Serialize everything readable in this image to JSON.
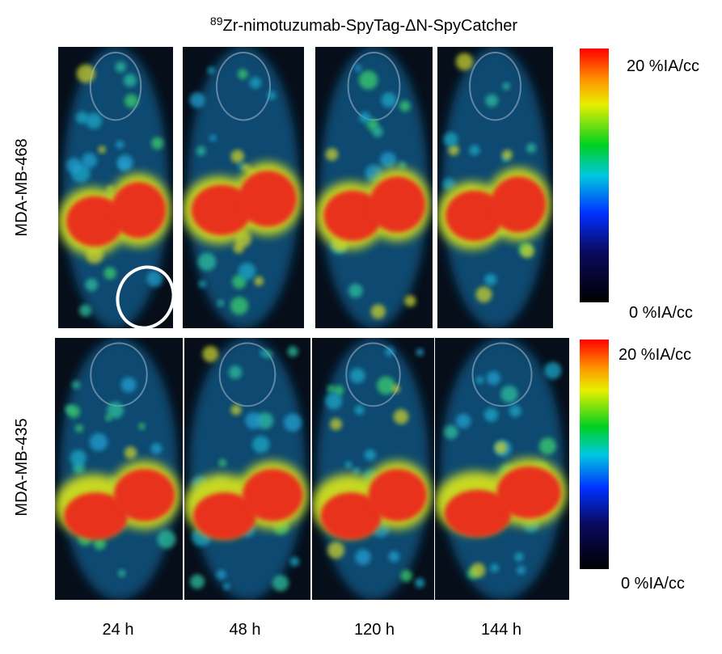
{
  "figure": {
    "title": {
      "superscript": "89",
      "text": "Zr-nimotuzumab-SpyTag-ΔN-SpyCatcher"
    },
    "rows": [
      {
        "label": "MDA-MB-468",
        "scale_max": "20 %IA/cc",
        "scale_min": "0 %IA/cc"
      },
      {
        "label": "MDA-MB-435",
        "scale_max": "20 %IA/cc",
        "scale_min": "0 %IA/cc"
      }
    ],
    "time_points": [
      "24 h",
      "48 h",
      "120 h",
      "144 h"
    ]
  }
}
